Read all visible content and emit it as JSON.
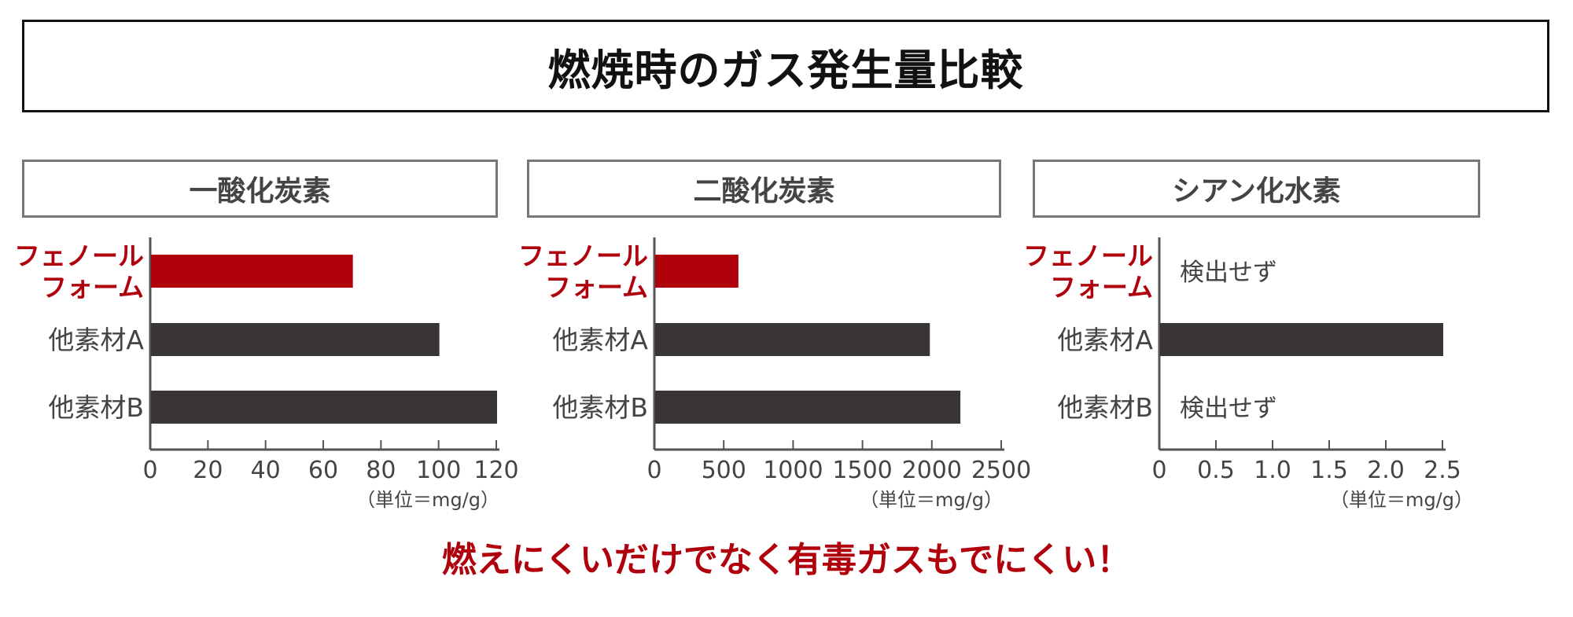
{
  "title": "燃焼時のガス発生量比較",
  "tagline": "燃えにくいだけでなく有毒ガスもでにくい！",
  "colors": {
    "highlight": "#b0000c",
    "bar": "#3a3535",
    "axis": "#555555",
    "label": "#444444"
  },
  "chart_data": [
    {
      "type": "bar",
      "orientation": "horizontal",
      "title": "一酸化炭素",
      "unit_label": "（単位＝mg/g）",
      "categories": [
        [
          "フェノール",
          "フォーム"
        ],
        [
          "他素材A"
        ],
        [
          "他素材B"
        ]
      ],
      "values": [
        70,
        100,
        120
      ],
      "value_texts": [
        "",
        "",
        ""
      ],
      "highlight_index": 0,
      "xlim": [
        0,
        120
      ],
      "ticks": [
        "0",
        "20",
        "40",
        "60",
        "80",
        "100",
        "120"
      ],
      "tick_values": [
        0,
        20,
        40,
        60,
        80,
        100,
        120
      ]
    },
    {
      "type": "bar",
      "orientation": "horizontal",
      "title": "二酸化炭素",
      "unit_label": "（単位＝mg/g）",
      "categories": [
        [
          "フェノール",
          "フォーム"
        ],
        [
          "他素材A"
        ],
        [
          "他素材B"
        ]
      ],
      "values": [
        600,
        1980,
        2200
      ],
      "value_texts": [
        "",
        "",
        ""
      ],
      "highlight_index": 0,
      "xlim": [
        0,
        2500
      ],
      "ticks": [
        "0",
        "500",
        "1000",
        "1500",
        "2000",
        "2500"
      ],
      "tick_values": [
        0,
        500,
        1000,
        1500,
        2000,
        2500
      ]
    },
    {
      "type": "bar",
      "orientation": "horizontal",
      "title": "シアン化水素",
      "unit_label": "（単位＝mg/g）",
      "categories": [
        [
          "フェノール",
          "フォーム"
        ],
        [
          "他素材A"
        ],
        [
          "他素材B"
        ]
      ],
      "values": [
        null,
        2.5,
        null
      ],
      "value_texts": [
        "検出せず",
        "",
        "検出せず"
      ],
      "highlight_index": 0,
      "xlim": [
        0,
        2.5
      ],
      "ticks": [
        "0",
        "0.5",
        "1.0",
        "1.5",
        "2.0",
        "2.5"
      ],
      "tick_values": [
        0,
        0.5,
        1.0,
        1.5,
        2.0,
        2.5
      ]
    }
  ]
}
